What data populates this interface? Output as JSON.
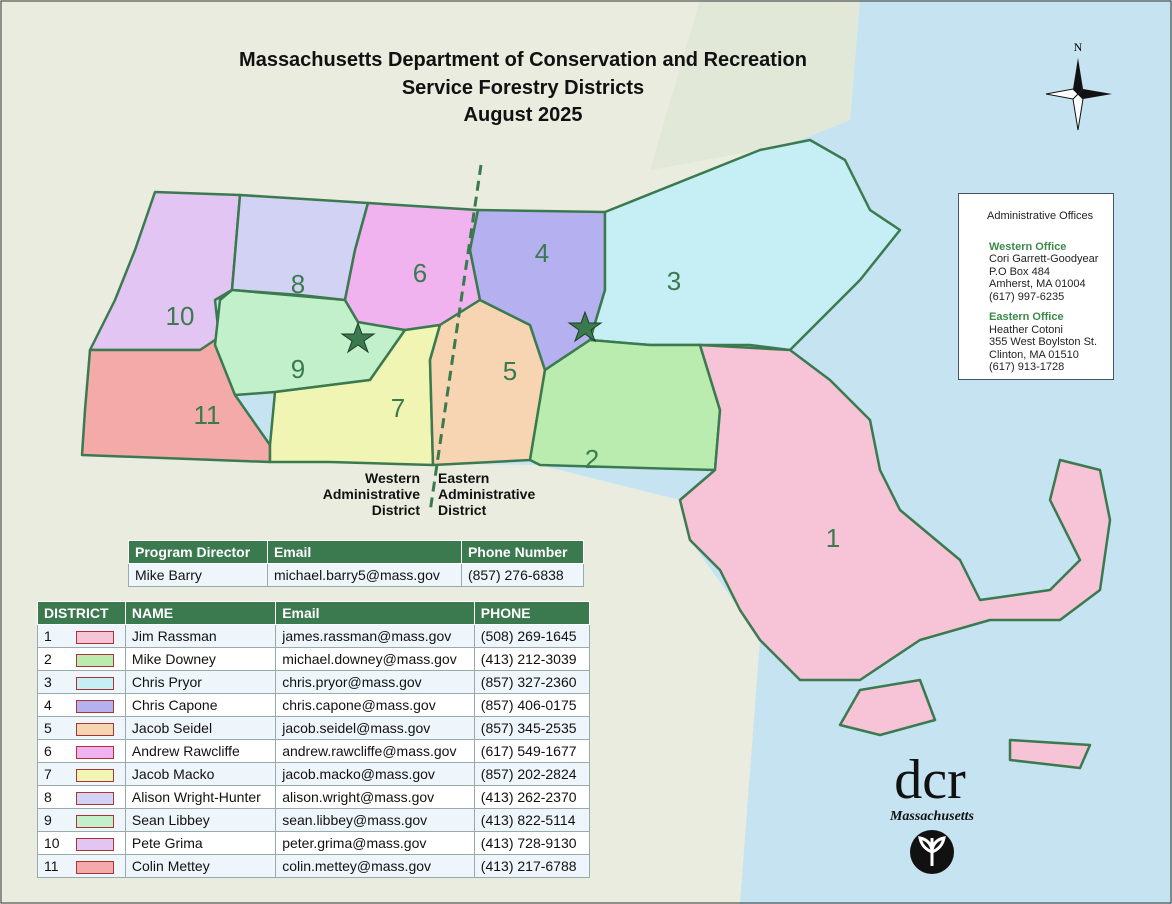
{
  "header": {
    "title": "Massachusetts Department of Conservation and Recreation",
    "subtitle": "Service Forestry Districts",
    "date": "August 2025"
  },
  "compass": "N",
  "boundary": {
    "western": [
      "Western",
      "Administrative",
      "District"
    ],
    "eastern": [
      "Eastern",
      "Administrative",
      "District"
    ]
  },
  "legend": {
    "symbol": "Administrative Offices",
    "western": [
      "Western Office",
      "Cori Garrett-Goodyear",
      "P.O Box 484",
      "Amherst, MA 01004",
      "(617) 997-6235"
    ],
    "eastern": [
      "Eastern Office",
      "Heather Cotoni",
      "355 West Boylston St.",
      "Clinton, MA 01510",
      "(617) 913-1728"
    ]
  },
  "director_table": {
    "headers": [
      "Program Director",
      "Email",
      "Phone Number"
    ],
    "row": [
      "Mike Barry",
      "michael.barry5@mass.gov",
      "(857) 276-6838"
    ]
  },
  "district_table": {
    "headers": [
      "DISTRICT",
      "NAME",
      "Email",
      "PHONE"
    ],
    "rows": [
      {
        "district": "1",
        "color": "#f7c3d6",
        "name": "Jim Rassman",
        "email": "james.rassman@mass.gov",
        "phone": "(508) 269-1645"
      },
      {
        "district": "2",
        "color": "#b9ecae",
        "name": "Mike Downey",
        "email": "michael.downey@mass.gov",
        "phone": "(413) 212-3039"
      },
      {
        "district": "3",
        "color": "#c5eff5",
        "name": "Chris Pryor",
        "email": "chris.pryor@mass.gov",
        "phone": "(857) 327-2360"
      },
      {
        "district": "4",
        "color": "#b5b0f0",
        "name": "Chris Capone",
        "email": "chris.capone@mass.gov",
        "phone": "(857) 406-0175"
      },
      {
        "district": "5",
        "color": "#f8d5b2",
        "name": "Jacob Seidel",
        "email": "jacob.seidel@mass.gov",
        "phone": "(857) 345-2535"
      },
      {
        "district": "6",
        "color": "#f0b3f0",
        "name": "Andrew Rawcliffe",
        "email": "andrew.rawcliffe@mass.gov",
        "phone": "(617) 549-1677"
      },
      {
        "district": "7",
        "color": "#f1f5b3",
        "name": "Jacob Macko",
        "email": "jacob.macko@mass.gov",
        "phone": "(857) 202-2824"
      },
      {
        "district": "8",
        "color": "#d2d2f5",
        "name": "Alison Wright-Hunter",
        "email": "alison.wright@mass.gov",
        "phone": "(413) 262-2370"
      },
      {
        "district": "9",
        "color": "#c2f0cb",
        "name": "Sean Libbey",
        "email": "sean.libbey@mass.gov",
        "phone": "(413) 822-5114"
      },
      {
        "district": "10",
        "color": "#e3c5f4",
        "name": "Pete Grima",
        "email": "peter.grima@mass.gov",
        "phone": "(413) 728-9130"
      },
      {
        "district": "11",
        "color": "#f4aaa8",
        "name": "Colin Mettey",
        "email": "colin.mettey@mass.gov",
        "phone": "(413) 217-6788"
      }
    ]
  },
  "logo": {
    "mark": "dcr",
    "state": "Massachusetts"
  }
}
